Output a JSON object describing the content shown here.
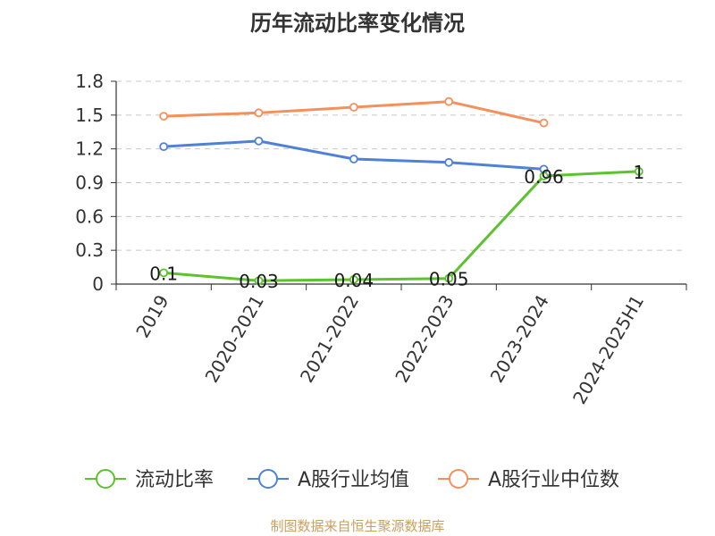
{
  "chart_data": {
    "type": "line",
    "title": "历年流动比率变化情况",
    "categories": [
      "2019",
      "2020-2021",
      "2021-2022",
      "2022-2023",
      "2023-2024",
      "2024-2025H1"
    ],
    "ylim": [
      0,
      1.8
    ],
    "yticks": [
      0,
      0.3,
      0.6,
      0.9,
      1.2,
      1.5,
      1.8
    ],
    "ytick_labels": [
      "0",
      "0.3",
      "0.6",
      "0.9",
      "1.2",
      "1.5",
      "1.8"
    ],
    "grid": true,
    "legend_position": "bottom",
    "series": [
      {
        "name": "流动比率",
        "color": "#5cc22e",
        "values": [
          0.1,
          0.03,
          0.04,
          0.05,
          0.96,
          1.0
        ],
        "labels": [
          "0.1",
          "0.03",
          "0.04",
          "0.05",
          "0.96",
          "1"
        ]
      },
      {
        "name": "A股行业均值",
        "color": "#4f82d6",
        "values": [
          1.22,
          1.27,
          1.11,
          1.08,
          1.02,
          null
        ]
      },
      {
        "name": "A股行业中位数",
        "color": "#f4905c",
        "values": [
          1.49,
          1.52,
          1.57,
          1.62,
          1.43,
          null
        ]
      }
    ]
  },
  "source": "制图数据来自恒生聚源数据库"
}
